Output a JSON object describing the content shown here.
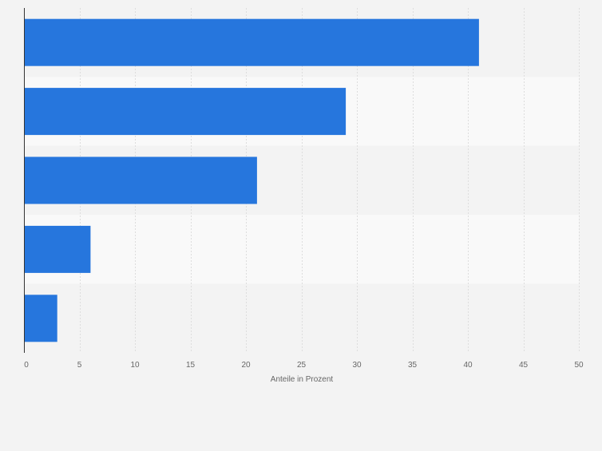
{
  "chart_data": {
    "type": "bar",
    "orientation": "horizontal",
    "categories": [
      "",
      "",
      "",
      "",
      ""
    ],
    "values": [
      41,
      29,
      21,
      6,
      3
    ],
    "title": "",
    "xlabel": "Anteile in Prozent",
    "ylabel": "",
    "xlim": [
      0,
      50
    ],
    "xticks": [
      "0",
      "5",
      "10",
      "15",
      "20",
      "25",
      "30",
      "35",
      "40",
      "45",
      "50"
    ],
    "grid": true,
    "legend": "none",
    "colors": {
      "bar": "#2676dd",
      "band_light": "#f9f9f9",
      "band_dark": "#f3f3f3",
      "grid": "#dddddd",
      "axis": "#333333",
      "tick_text": "#666666"
    }
  }
}
